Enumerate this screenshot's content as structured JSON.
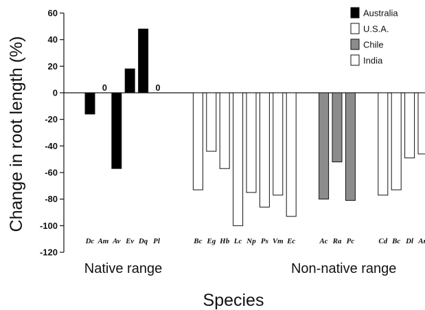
{
  "chart_data": {
    "type": "bar",
    "ylabel": "Change in root length (%)",
    "xlabel": "Species",
    "ylim": [
      -120,
      60
    ],
    "yticks": [
      60,
      40,
      20,
      0,
      -20,
      -40,
      -60,
      -80,
      -100,
      -120
    ],
    "grid": false,
    "legend_position": "top-right",
    "legend": [
      {
        "name": "Australia",
        "color": "#000000"
      },
      {
        "name": "U.S.A.",
        "color": "#ffffff"
      },
      {
        "name": "Chile",
        "color": "#8c8c8c"
      },
      {
        "name": "India",
        "color": "#ffffff"
      }
    ],
    "range_labels": [
      {
        "label": "Native range",
        "center_category": 2.5
      },
      {
        "label": "Non-native range",
        "center_category": 15.5
      }
    ],
    "zero_marker": "0",
    "categories": [
      {
        "label": "Dc",
        "value": -16,
        "region": "Australia",
        "range": "native"
      },
      {
        "label": "Am",
        "value": 0,
        "region": "Australia",
        "range": "native"
      },
      {
        "label": "Av",
        "value": -57,
        "region": "Australia",
        "range": "native"
      },
      {
        "label": "Ev",
        "value": 18,
        "region": "Australia",
        "range": "native"
      },
      {
        "label": "Dq",
        "value": 48,
        "region": "Australia",
        "range": "native"
      },
      {
        "label": "Pl",
        "value": 0,
        "region": "Australia",
        "range": "native"
      },
      {
        "label": "Bc",
        "value": -73,
        "region": "U.S.A.",
        "range": "non-native"
      },
      {
        "label": "Eg",
        "value": -44,
        "region": "U.S.A.",
        "range": "non-native"
      },
      {
        "label": "Hb",
        "value": -57,
        "region": "U.S.A.",
        "range": "non-native"
      },
      {
        "label": "Lc",
        "value": -100,
        "region": "U.S.A.",
        "range": "non-native"
      },
      {
        "label": "Np",
        "value": -75,
        "region": "U.S.A.",
        "range": "non-native"
      },
      {
        "label": "Ps",
        "value": -86,
        "region": "U.S.A.",
        "range": "non-native"
      },
      {
        "label": "Vm",
        "value": -77,
        "region": "U.S.A.",
        "range": "non-native"
      },
      {
        "label": "Ec",
        "value": -93,
        "region": "U.S.A.",
        "range": "non-native"
      },
      {
        "label": "Ac",
        "value": -80,
        "region": "Chile",
        "range": "non-native"
      },
      {
        "label": "Ra",
        "value": -52,
        "region": "Chile",
        "range": "non-native"
      },
      {
        "label": "Pc",
        "value": -81,
        "region": "Chile",
        "range": "non-native"
      },
      {
        "label": "Cd",
        "value": -77,
        "region": "India",
        "range": "non-native"
      },
      {
        "label": "Bc",
        "value": -73,
        "region": "India",
        "range": "non-native"
      },
      {
        "label": "Dl",
        "value": -49,
        "region": "India",
        "range": "non-native"
      },
      {
        "label": "An",
        "value": -46,
        "region": "India",
        "range": "non-native"
      }
    ]
  }
}
